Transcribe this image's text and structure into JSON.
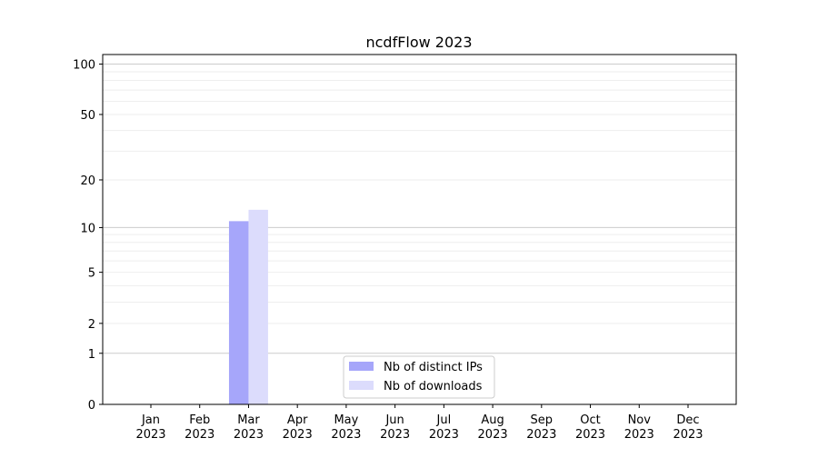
{
  "chart_data": {
    "type": "bar",
    "title": "ncdfFlow 2023",
    "xlabel": "",
    "ylabel": "",
    "yscale": "log10(1+y)",
    "ylim": [
      0,
      114
    ],
    "yticks": [
      0,
      1,
      2,
      5,
      10,
      20,
      50,
      100
    ],
    "grid": true,
    "legend_position": "bottom-center",
    "categories": [
      "Jan\n2023",
      "Feb\n2023",
      "Mar\n2023",
      "Apr\n2023",
      "May\n2023",
      "Jun\n2023",
      "Jul\n2023",
      "Aug\n2023",
      "Sep\n2023",
      "Oct\n2023",
      "Nov\n2023",
      "Dec\n2023"
    ],
    "series": [
      {
        "name": "Nb of distinct IPs",
        "color": "#a6a6fa",
        "values": [
          0,
          0,
          11,
          0,
          0,
          0,
          0,
          0,
          0,
          0,
          0,
          0
        ]
      },
      {
        "name": "Nb of downloads",
        "color": "#dcdcfc",
        "values": [
          0,
          0,
          13,
          0,
          0,
          0,
          0,
          0,
          0,
          0,
          0,
          0
        ]
      }
    ]
  }
}
